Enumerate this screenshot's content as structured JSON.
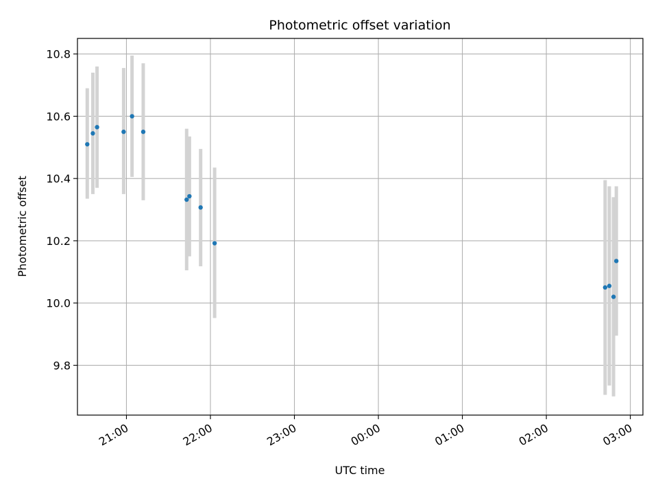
{
  "chart_data": {
    "type": "scatter",
    "title": "Photometric offset variation",
    "xlabel": "UTC time",
    "ylabel": "Photometric offset",
    "x_axis": "time",
    "xlim": [
      "20:25",
      "03:09"
    ],
    "ylim": [
      9.64,
      10.85
    ],
    "x_ticks": [
      "21:00",
      "22:00",
      "23:00",
      "00:00",
      "01:00",
      "02:00",
      "03:00"
    ],
    "y_ticks": [
      9.8,
      10.0,
      10.2,
      10.4,
      10.6,
      10.8
    ],
    "y_tick_labels": [
      "9.8",
      "10.0",
      "10.2",
      "10.4",
      "10.6",
      "10.8"
    ],
    "grid": true,
    "colors": {
      "point": "#1f77b4",
      "errorbar": "#d3d3d3",
      "grid": "#b0b0b0"
    },
    "series": [
      {
        "points": [
          {
            "x": "20:32",
            "y": 10.51,
            "low": 10.335,
            "high": 10.69
          },
          {
            "x": "20:36",
            "y": 10.545,
            "low": 10.35,
            "high": 10.74
          },
          {
            "x": "20:39",
            "y": 10.565,
            "low": 10.37,
            "high": 10.76
          },
          {
            "x": "20:58",
            "y": 10.55,
            "low": 10.35,
            "high": 10.755
          },
          {
            "x": "21:04",
            "y": 10.6,
            "low": 10.405,
            "high": 10.795
          },
          {
            "x": "21:12",
            "y": 10.55,
            "low": 10.33,
            "high": 10.77
          },
          {
            "x": "21:43",
            "y": 10.332,
            "low": 10.105,
            "high": 10.56
          },
          {
            "x": "21:45",
            "y": 10.343,
            "low": 10.15,
            "high": 10.535
          },
          {
            "x": "21:53",
            "y": 10.307,
            "low": 10.118,
            "high": 10.495
          },
          {
            "x": "22:03",
            "y": 10.192,
            "low": 9.952,
            "high": 10.435
          },
          {
            "x": "02:42",
            "y": 10.05,
            "low": 9.705,
            "high": 10.395
          },
          {
            "x": "02:45",
            "y": 10.055,
            "low": 9.735,
            "high": 10.375
          },
          {
            "x": "02:48",
            "y": 10.02,
            "low": 9.7,
            "high": 10.34
          },
          {
            "x": "02:50",
            "y": 10.135,
            "low": 9.895,
            "high": 10.375
          }
        ]
      }
    ]
  }
}
